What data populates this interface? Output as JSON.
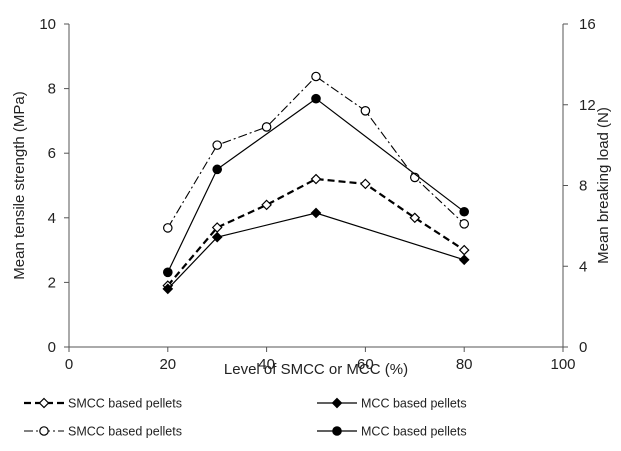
{
  "chart_data": {
    "type": "line",
    "xlabel": "Level of SMCC or MCC (%)",
    "ylabel": "Mean tensile strength  (MPa)",
    "y2label": "Mean breaking load (N)",
    "xlim": [
      0,
      100
    ],
    "ylim": [
      0,
      10
    ],
    "y2lim": [
      0,
      16
    ],
    "x_ticks": [
      "0",
      "20",
      "40",
      "60",
      "80",
      "100"
    ],
    "y_ticks": [
      "0",
      "2",
      "4",
      "6",
      "8",
      "10"
    ],
    "y2_ticks": [
      "0",
      "4",
      "8",
      "12",
      "16"
    ],
    "grid": false,
    "legend_position": "bottom",
    "series": [
      {
        "name": "SMCC based pellets",
        "axis": "left",
        "marker": "diamond-open",
        "line": "dashed",
        "color": "#000000",
        "points": [
          [
            20,
            1.9
          ],
          [
            30,
            3.7
          ],
          [
            40,
            4.4
          ],
          [
            50,
            5.2
          ],
          [
            60,
            5.05
          ],
          [
            70,
            4.0
          ],
          [
            80,
            3.0
          ]
        ]
      },
      {
        "name": "MCC based pellets",
        "axis": "left",
        "marker": "diamond-filled",
        "line": "solid",
        "color": "#000000",
        "points": [
          [
            20,
            1.8
          ],
          [
            30,
            3.4
          ],
          [
            50,
            4.15
          ],
          [
            80,
            2.7
          ]
        ]
      },
      {
        "name": "SMCC based pellets",
        "axis": "right",
        "marker": "circle-open",
        "line": "dashdot",
        "color": "#000000",
        "points": [
          [
            20,
            5.9
          ],
          [
            30,
            10.0
          ],
          [
            40,
            10.9
          ],
          [
            50,
            13.4
          ],
          [
            60,
            11.7
          ],
          [
            70,
            8.4
          ],
          [
            80,
            6.1
          ]
        ]
      },
      {
        "name": "MCC based pellets",
        "axis": "right",
        "marker": "circle-filled",
        "line": "solid",
        "color": "#000000",
        "points": [
          [
            20,
            3.7
          ],
          [
            30,
            8.8
          ],
          [
            50,
            12.3
          ],
          [
            80,
            6.7
          ]
        ]
      }
    ]
  }
}
